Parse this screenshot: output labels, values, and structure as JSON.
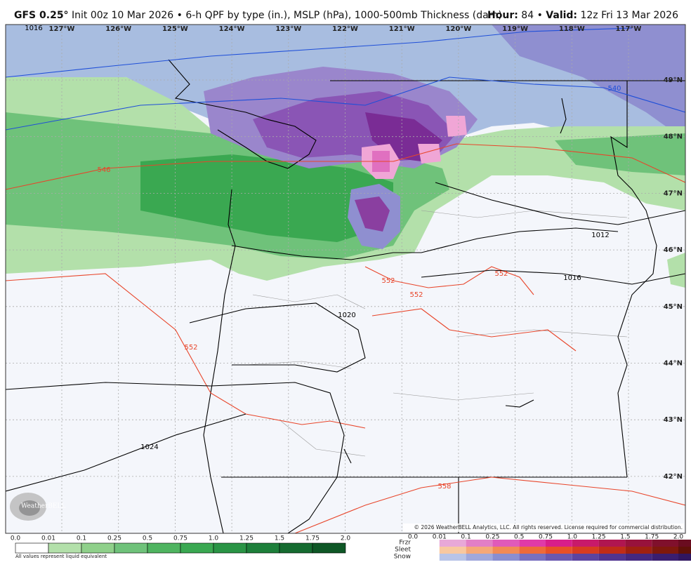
{
  "header": {
    "title": "GFS 0.25°",
    "subtitle": "Init 00z 10 Mar 2026",
    "separator": "•",
    "description": "6-h QPF by type (in.), MSLP (hPa), 1000-500mb Thickness (dam)",
    "hour_label": "Hour:",
    "hour": "84",
    "valid_label": "Valid:",
    "valid": "12z Fri 13 Mar 2026"
  },
  "map": {
    "longitudes": [
      "127°W",
      "126°W",
      "125°W",
      "124°W",
      "123°W",
      "122°W",
      "121°W",
      "120°W",
      "119°W",
      "118°W",
      "117°W"
    ],
    "latitudes": [
      "49°N",
      "48°N",
      "47°N",
      "46°N",
      "45°N",
      "44°N",
      "43°N",
      "42°N"
    ],
    "contour_labels": [
      "1016",
      "540",
      "546",
      "1012",
      "1016",
      "552",
      "552",
      "552",
      "1020",
      "552",
      "1024",
      "558"
    ],
    "copyright": "© 2026 WeatherBELL Analytics, LLC. All rights reserved. License required for commercial distribution.",
    "watermark": "WeatherBELL"
  },
  "legend": {
    "rain_labels": [
      "0.0",
      "0.01",
      "0.1",
      "0.25",
      "0.5",
      "0.75",
      "1.0",
      "1.25",
      "1.5",
      "1.75",
      "2.0"
    ],
    "rain_note": "All values represent liquid equivalent",
    "mixed_labels": [
      "0.0",
      "0.01",
      "0.1",
      "0.25",
      "0.5",
      "0.75",
      "1.0",
      "1.25",
      "1.5",
      "1.75",
      "2.0"
    ],
    "types": [
      "Frzr",
      "Sleet",
      "Snow"
    ]
  }
}
